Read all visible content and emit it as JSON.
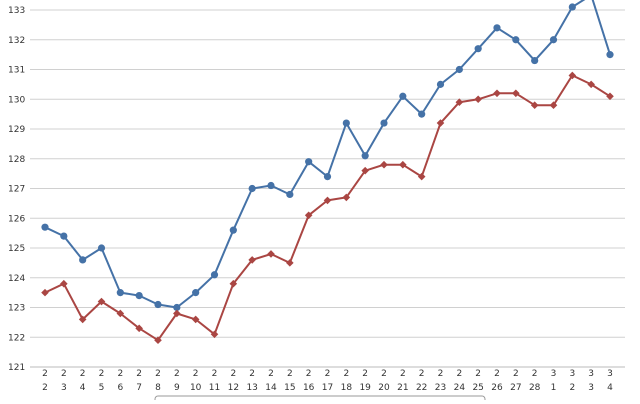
{
  "chart_data": {
    "type": "line",
    "ylim": [
      121,
      133
    ],
    "yticks": [
      121,
      122,
      123,
      124,
      125,
      126,
      127,
      128,
      129,
      130,
      131,
      132,
      133
    ],
    "grid": true,
    "categories": [
      {
        "month": "2",
        "day": "2"
      },
      {
        "month": "2",
        "day": "3"
      },
      {
        "month": "2",
        "day": "4"
      },
      {
        "month": "2",
        "day": "5"
      },
      {
        "month": "2",
        "day": "6"
      },
      {
        "month": "2",
        "day": "7"
      },
      {
        "month": "2",
        "day": "8"
      },
      {
        "month": "2",
        "day": "9"
      },
      {
        "month": "2",
        "day": "10"
      },
      {
        "month": "2",
        "day": "11"
      },
      {
        "month": "2",
        "day": "12"
      },
      {
        "month": "2",
        "day": "13"
      },
      {
        "month": "2",
        "day": "14"
      },
      {
        "month": "2",
        "day": "15"
      },
      {
        "month": "2",
        "day": "16"
      },
      {
        "month": "2",
        "day": "17"
      },
      {
        "month": "2",
        "day": "18"
      },
      {
        "month": "2",
        "day": "19"
      },
      {
        "month": "2",
        "day": "20"
      },
      {
        "month": "2",
        "day": "21"
      },
      {
        "month": "2",
        "day": "22"
      },
      {
        "month": "2",
        "day": "23"
      },
      {
        "month": "2",
        "day": "24"
      },
      {
        "month": "2",
        "day": "25"
      },
      {
        "month": "2",
        "day": "26"
      },
      {
        "month": "2",
        "day": "27"
      },
      {
        "month": "2",
        "day": "28"
      },
      {
        "month": "3",
        "day": "1"
      },
      {
        "month": "3",
        "day": "2"
      },
      {
        "month": "3",
        "day": "3"
      },
      {
        "month": "3",
        "day": "4"
      }
    ],
    "series": [
      {
        "color": "#4572a7",
        "marker": "circle",
        "values": [
          125.7,
          125.4,
          124.6,
          125.0,
          123.5,
          123.4,
          123.1,
          123.0,
          123.5,
          124.1,
          125.6,
          127.0,
          127.1,
          126.8,
          127.9,
          127.4,
          129.2,
          128.1,
          129.2,
          130.1,
          129.5,
          130.5,
          131.0,
          131.7,
          132.4,
          132.0,
          131.3,
          132.0,
          133.1,
          133.5,
          131.5
        ]
      },
      {
        "color": "#aa4643",
        "marker": "diamond",
        "values": [
          123.5,
          123.8,
          122.6,
          123.2,
          122.8,
          122.3,
          121.9,
          122.8,
          122.6,
          122.1,
          123.8,
          124.6,
          124.8,
          124.5,
          126.1,
          126.6,
          126.7,
          127.6,
          127.8,
          127.8,
          127.4,
          129.2,
          129.9,
          130.0,
          130.2,
          130.2,
          129.8,
          129.8,
          130.8,
          130.5,
          130.1
        ]
      }
    ]
  }
}
